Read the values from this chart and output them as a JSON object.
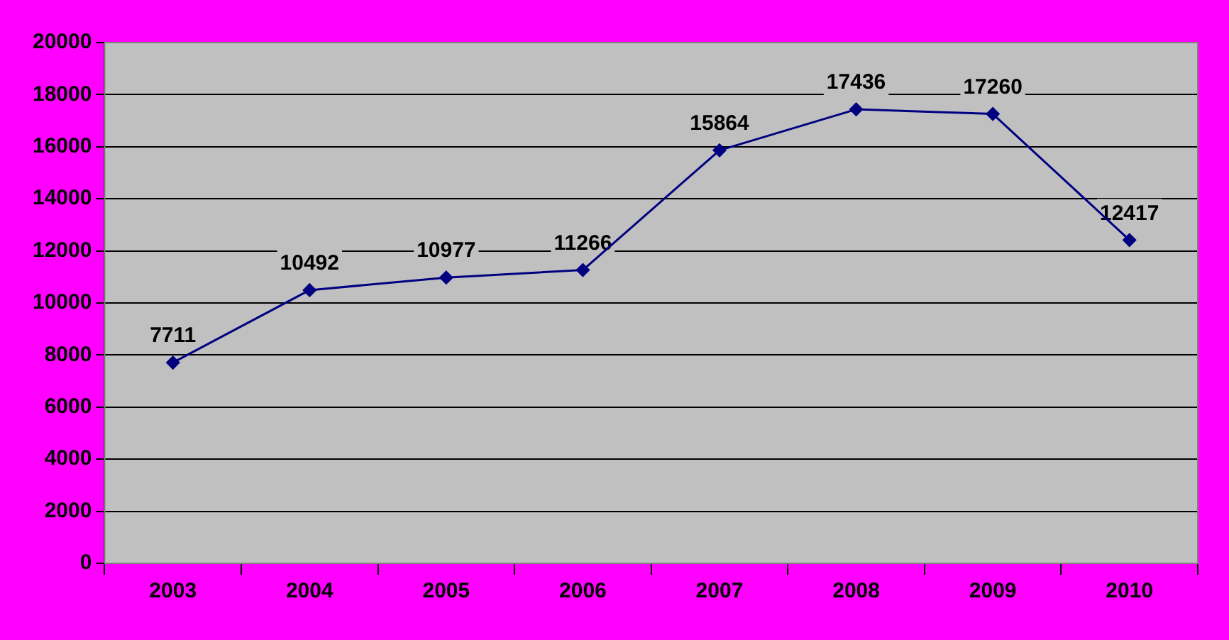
{
  "chart_data": {
    "type": "line",
    "categories": [
      "2003",
      "2004",
      "2005",
      "2006",
      "2007",
      "2008",
      "2009",
      "2010"
    ],
    "series": [
      {
        "color": "#000080",
        "values": [
          7711,
          10492,
          10977,
          11266,
          15864,
          17436,
          17260,
          12417
        ]
      }
    ],
    "ylim": [
      0,
      20000
    ],
    "yticks": [
      0,
      2000,
      4000,
      6000,
      8000,
      10000,
      12000,
      14000,
      16000,
      18000,
      20000
    ],
    "grid": "y",
    "legend": false,
    "marker": "diamond",
    "line_style": "solid",
    "data_labels": true
  }
}
